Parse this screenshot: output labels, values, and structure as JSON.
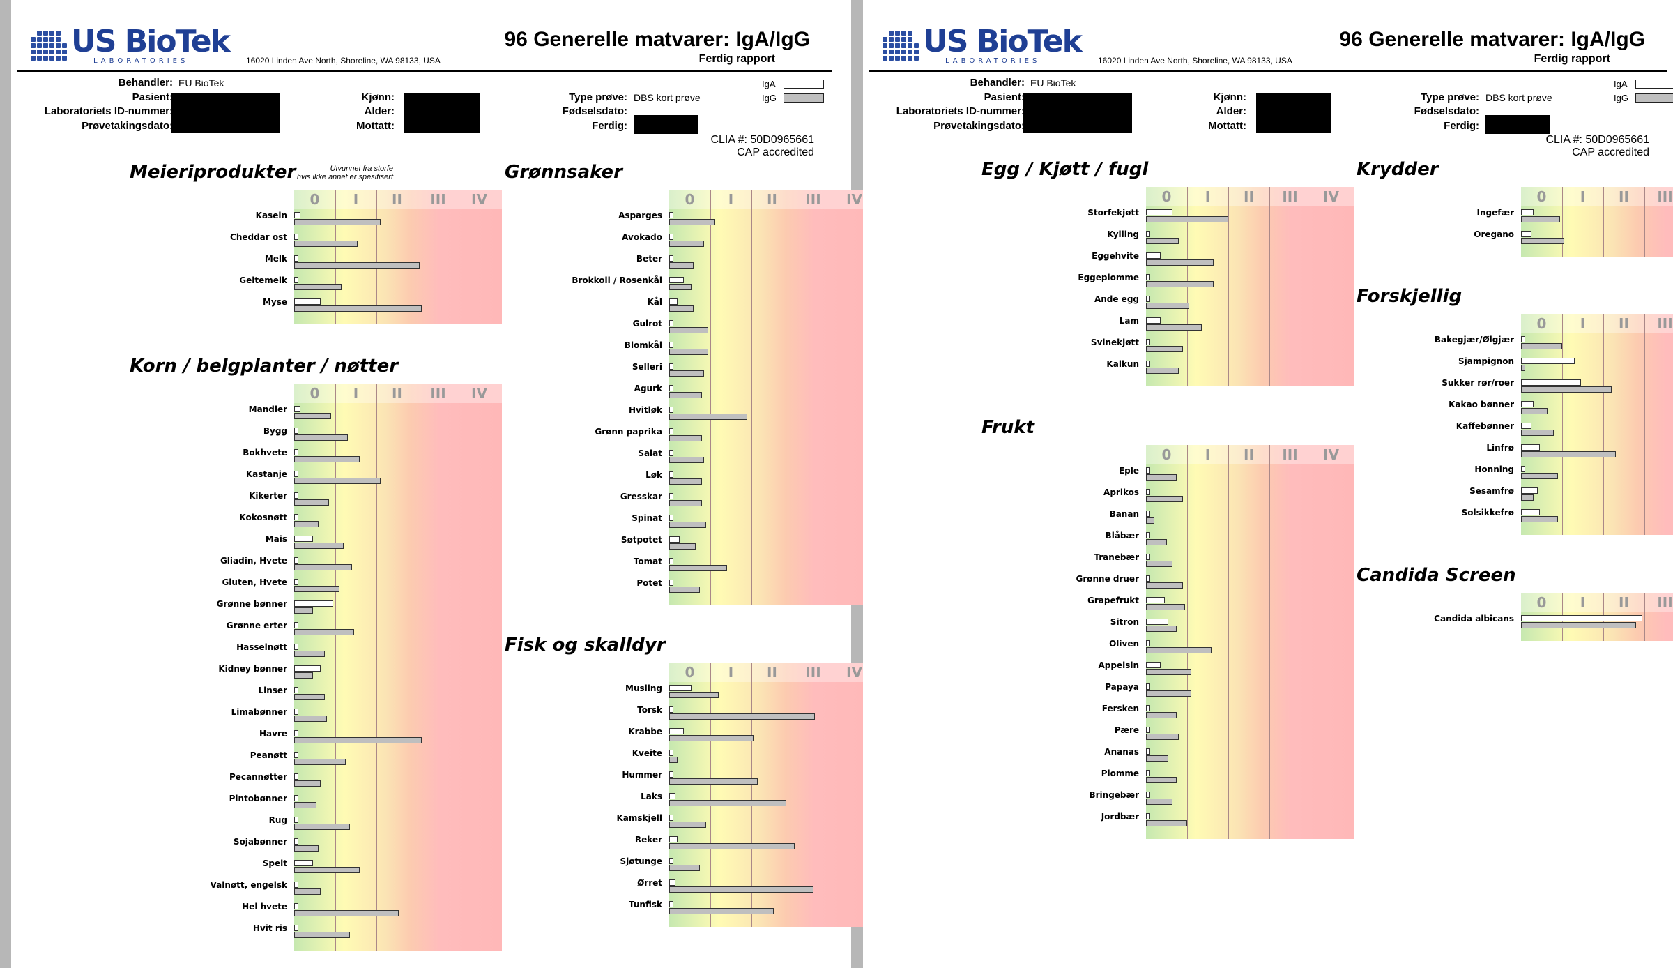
{
  "header": {
    "logo_main": "US BioTek",
    "logo_sub": "LABORATORIES",
    "address": "16020 Linden Ave North, Shoreline, WA 98133, USA",
    "title": "96 Generelle matvarer: IgA/IgG",
    "subtitle": "Ferdig rapport"
  },
  "patient": {
    "behandler_label": "Behandler:",
    "behandler_value": "EU BioTek",
    "pasient_label": "Pasient:",
    "lab_id_label": "Laboratoriets ID-nummer:",
    "provetaking_label": "Prøvetakingsdato:",
    "kjonn_label": "Kjønn:",
    "alder_label": "Alder:",
    "mottatt_label": "Mottatt:",
    "type_label": "Type prøve:",
    "type_value": "DBS kort prøve",
    "fodsel_label": "Fødselsdato:",
    "ferdig_label": "Ferdig:",
    "iga_legend": "IgA",
    "igg_legend": "IgG",
    "clia": "CLIA #: 50D0965661",
    "cap": "CAP accredited"
  },
  "class_labels": [
    "0",
    "I",
    "II",
    "III",
    "IV"
  ],
  "colors": {
    "iga": "#ffffff",
    "igg": "#bfbfbf",
    "logo": "#1f3f94"
  },
  "chart_data": [
    {
      "type": "bar",
      "title": "Meieriprodukter",
      "note": "Utvunnet fra storfe\nhvis ikke annet er spesifisert",
      "x_scale": "klasse 0–IV",
      "categories": [
        "Kasein",
        "Cheddar ost",
        "Melk",
        "Geitemelk",
        "Myse"
      ],
      "series": [
        {
          "name": "IgA",
          "values": [
            0.15,
            0,
            0,
            0,
            0.65
          ]
        },
        {
          "name": "IgG",
          "values": [
            2.1,
            1.55,
            3.05,
            1.15,
            3.1
          ]
        }
      ]
    },
    {
      "type": "bar",
      "title": "Korn / belgplanter / nøtter",
      "categories": [
        "Mandler",
        "Bygg",
        "Bokhvete",
        "Kastanje",
        "Kikerter",
        "Kokosnøtt",
        "Mais",
        "Gliadin, Hvete",
        "Gluten, Hvete",
        "Grønne bønner",
        "Grønne erter",
        "Hasselnøtt",
        "Kidney bønner",
        "Linser",
        "Limabønner",
        "Havre",
        "Peanøtt",
        "Pecannøtter",
        "Pintobønner",
        "Rug",
        "Sojabønner",
        "Spelt",
        "Valnøtt, engelsk",
        "Hel hvete",
        "Hvit ris"
      ],
      "series": [
        {
          "name": "IgA",
          "values": [
            0.15,
            0,
            0,
            0,
            0,
            0,
            0.45,
            0.1,
            0.1,
            0.95,
            0,
            0,
            0.65,
            0,
            0,
            0,
            0,
            0,
            0,
            0,
            0,
            0.45,
            0,
            0,
            0
          ]
        },
        {
          "name": "IgG",
          "values": [
            0.9,
            1.3,
            1.6,
            2.1,
            0.85,
            0.6,
            1.2,
            1.4,
            1.1,
            0.45,
            1.45,
            0.75,
            0.45,
            0.75,
            0.8,
            3.1,
            1.25,
            0.65,
            0.55,
            1.35,
            0.6,
            1.6,
            0.65,
            2.55,
            1.35
          ]
        }
      ]
    },
    {
      "type": "bar",
      "title": "Grønnsaker",
      "categories": [
        "Asparges",
        "Avokado",
        "Beter",
        "Brokkoli / Rosenkål",
        "Kål",
        "Gulrot",
        "Blomkål",
        "Selleri",
        "Agurk",
        "Hvitløk",
        "Grønn paprika",
        "Salat",
        "Løk",
        "Gresskar",
        "Spinat",
        "Søtpotet",
        "Tomat",
        "Potet"
      ],
      "series": [
        {
          "name": "IgA",
          "values": [
            0.05,
            0,
            0,
            0.35,
            0.2,
            0,
            0,
            0,
            0,
            0.05,
            0,
            0,
            0,
            0,
            0,
            0.25,
            0.05,
            0.05
          ]
        },
        {
          "name": "IgG",
          "values": [
            1.1,
            0.85,
            0.6,
            0.55,
            0.6,
            0.95,
            0.95,
            0.85,
            0.8,
            1.9,
            0.8,
            0.85,
            0.8,
            0.8,
            0.9,
            0.65,
            1.4,
            0.75
          ]
        }
      ]
    },
    {
      "type": "bar",
      "title": "Fisk og skalldyr",
      "categories": [
        "Musling",
        "Torsk",
        "Krabbe",
        "Kveite",
        "Hummer",
        "Laks",
        "Kamskjell",
        "Reker",
        "Sjøtunge",
        "Ørret",
        "Tunfisk"
      ],
      "series": [
        {
          "name": "IgA",
          "values": [
            0.55,
            0.05,
            0.35,
            0.1,
            0.05,
            0.15,
            0.05,
            0.2,
            0.05,
            0.15,
            0.05
          ]
        },
        {
          "name": "IgG",
          "values": [
            1.2,
            3.55,
            2.05,
            0.2,
            2.15,
            2.85,
            0.9,
            3.05,
            0.75,
            3.5,
            2.55
          ]
        }
      ]
    },
    {
      "type": "bar",
      "title": "Egg / Kjøtt / fugl",
      "categories": [
        "Storfekjøtt",
        "Kylling",
        "Eggehvite",
        "Eggeplomme",
        "Ande egg",
        "Lam",
        "Svinekjøtt",
        "Kalkun"
      ],
      "series": [
        {
          "name": "IgA",
          "values": [
            0.65,
            0.05,
            0.35,
            0.05,
            0.1,
            0.35,
            0.05,
            0.05
          ]
        },
        {
          "name": "IgG",
          "values": [
            2.0,
            0.8,
            1.65,
            1.65,
            1.05,
            1.35,
            0.9,
            0.8
          ]
        }
      ]
    },
    {
      "type": "bar",
      "title": "Frukt",
      "categories": [
        "Eple",
        "Aprikos",
        "Banan",
        "Blåbær",
        "Tranebær",
        "Grønne druer",
        "Grapefrukt",
        "Sitron",
        "Oliven",
        "Appelsin",
        "Papaya",
        "Fersken",
        "Pære",
        "Ananas",
        "Plomme",
        "Bringebær",
        "Jordbær"
      ],
      "series": [
        {
          "name": "IgA",
          "values": [
            0.1,
            0.05,
            0.05,
            0.1,
            0.05,
            0.05,
            0.45,
            0.55,
            0.05,
            0.35,
            0.1,
            0.05,
            0.05,
            0.05,
            0.05,
            0.05,
            0.05
          ]
        },
        {
          "name": "IgG",
          "values": [
            0.75,
            0.9,
            0.2,
            0.5,
            0.65,
            0.9,
            0.95,
            0.75,
            1.6,
            1.1,
            1.1,
            0.75,
            0.8,
            0.55,
            0.75,
            0.65,
            1.0
          ]
        }
      ]
    },
    {
      "type": "bar",
      "title": "Krydder",
      "categories": [
        "Ingefær",
        "Oregano"
      ],
      "series": [
        {
          "name": "IgA",
          "values": [
            0.3,
            0.25
          ]
        },
        {
          "name": "IgG",
          "values": [
            0.95,
            1.05
          ]
        }
      ]
    },
    {
      "type": "bar",
      "title": "Forskjellig",
      "categories": [
        "Bakegjær/Ølgjær",
        "Sjampignon",
        "Sukker rør/roer",
        "Kakao bønner",
        "Kaffebønner",
        "Linfrø",
        "Honning",
        "Sesamfrø",
        "Solsikkefrø"
      ],
      "series": [
        {
          "name": "IgA",
          "values": [
            0.05,
            1.3,
            1.45,
            0.3,
            0.25,
            0.45,
            0.05,
            0.4,
            0.45
          ]
        },
        {
          "name": "IgG",
          "values": [
            1.0,
            0.05,
            2.2,
            0.65,
            0.8,
            2.3,
            0.9,
            0.3,
            0.9
          ]
        }
      ]
    },
    {
      "type": "bar",
      "title": "Candida Screen",
      "categories": [
        "Candida albicans"
      ],
      "series": [
        {
          "name": "IgA",
          "values": [
            2.95
          ]
        },
        {
          "name": "IgG",
          "values": [
            2.8
          ]
        }
      ]
    }
  ]
}
